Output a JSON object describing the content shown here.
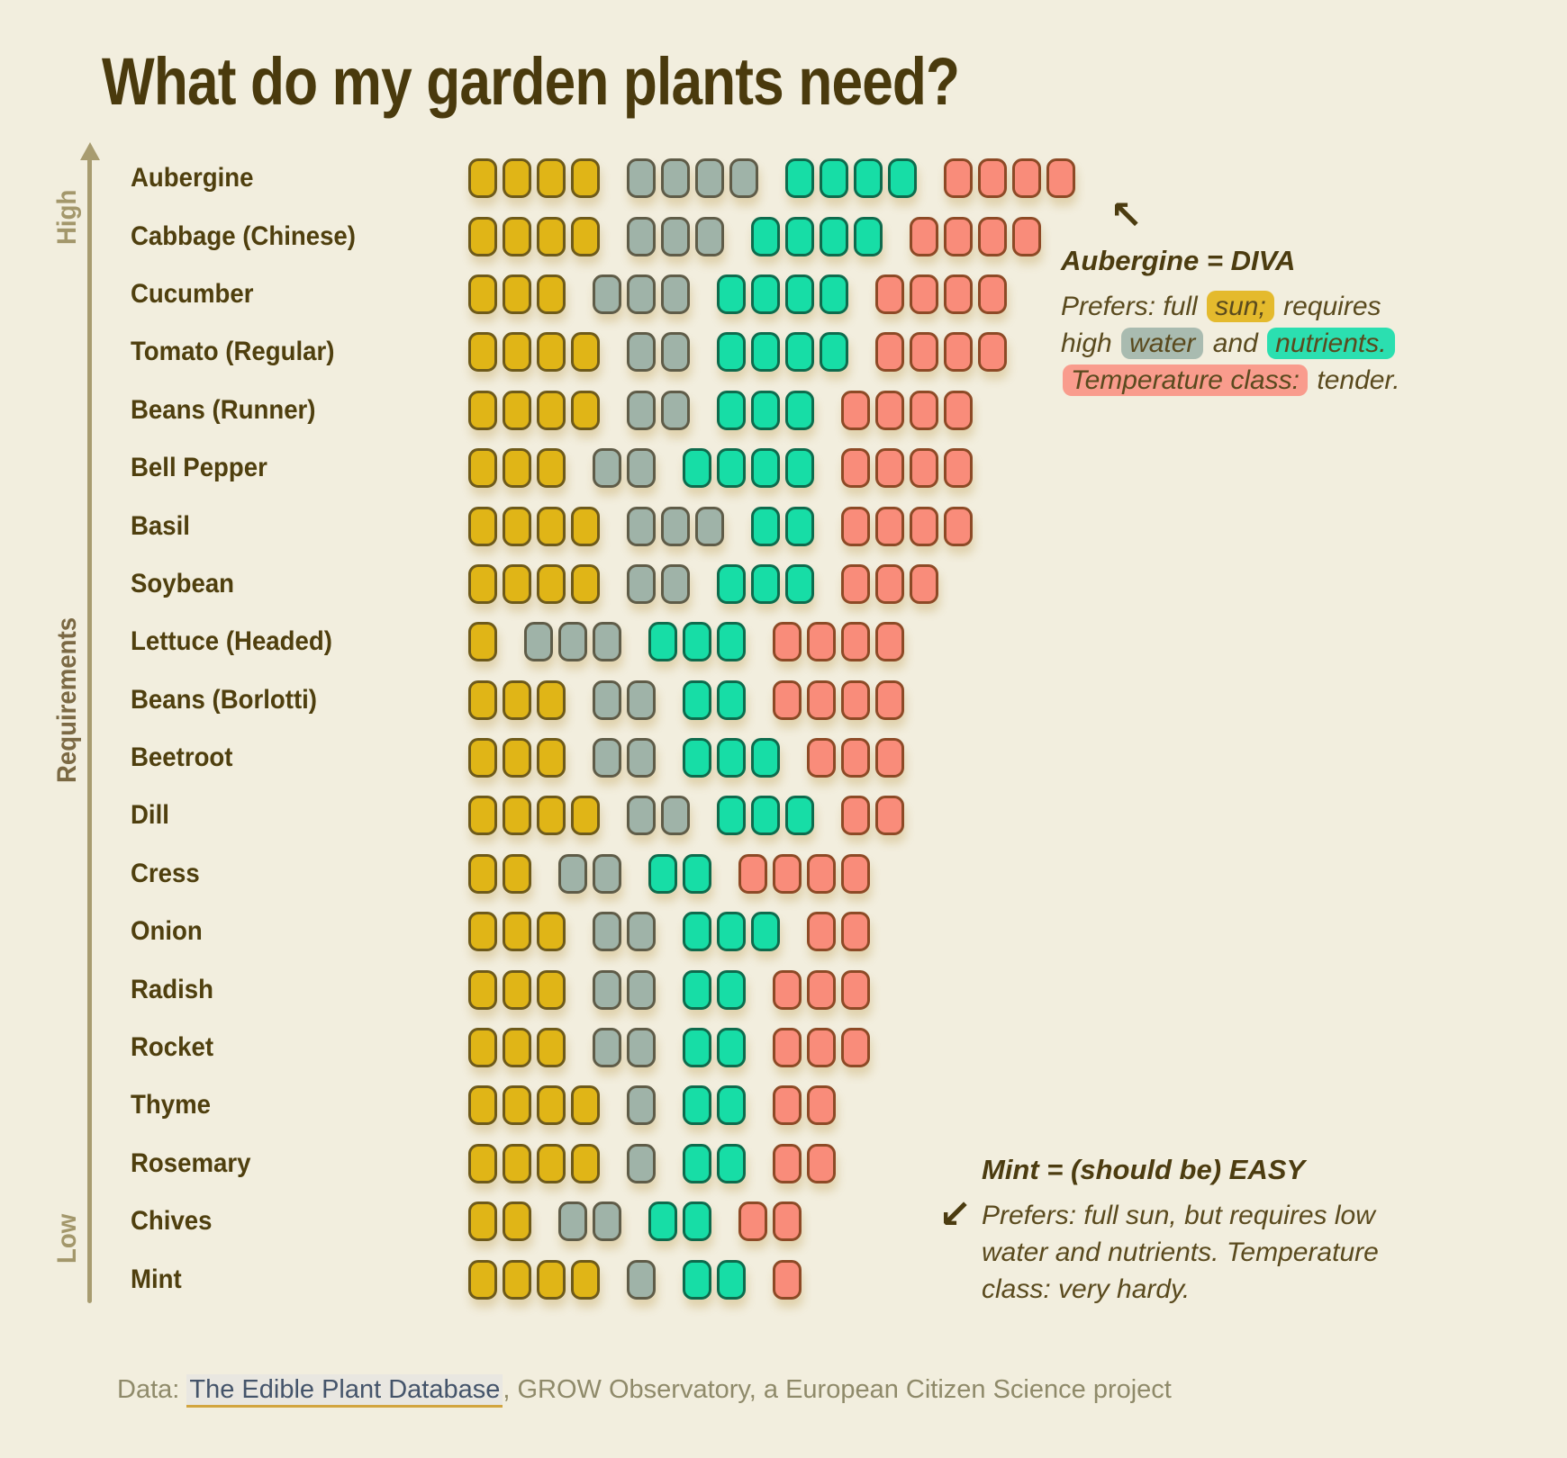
{
  "title": "What do my garden plants need?",
  "axis": {
    "top_label": "High",
    "mid_label": "Requirements",
    "bottom_label": "Low"
  },
  "chart_data": {
    "type": "heatmap",
    "subtype": "icon-array-pictograph",
    "title": "What do my garden plants need?",
    "ylabel": "Requirements",
    "axis_range_labels": [
      "Low",
      "High"
    ],
    "categories": [
      "sun",
      "water",
      "nutrients",
      "temperature"
    ],
    "legend_position": "none",
    "colors": {
      "sun": {
        "fill": "#e0b517",
        "border": "#6e5a1a"
      },
      "water": {
        "fill": "#9fb3a8",
        "border": "#5f5c48"
      },
      "nutrients": {
        "fill": "#17dda6",
        "border": "#0e6b4d"
      },
      "temperature": {
        "fill": "#f98c7a",
        "border": "#8d4a26"
      },
      "background": "#f2eede",
      "text_brown": "#4c3c10",
      "axis_tan": "#a89c70"
    },
    "rows": [
      {
        "plant": "Aubergine",
        "sun": 4,
        "water": 4,
        "nutrients": 4,
        "temperature": 4
      },
      {
        "plant": "Cabbage (Chinese)",
        "sun": 4,
        "water": 3,
        "nutrients": 4,
        "temperature": 4
      },
      {
        "plant": "Cucumber",
        "sun": 3,
        "water": 3,
        "nutrients": 4,
        "temperature": 4
      },
      {
        "plant": "Tomato (Regular)",
        "sun": 4,
        "water": 2,
        "nutrients": 4,
        "temperature": 4
      },
      {
        "plant": "Beans (Runner)",
        "sun": 4,
        "water": 2,
        "nutrients": 3,
        "temperature": 4
      },
      {
        "plant": "Bell Pepper",
        "sun": 3,
        "water": 2,
        "nutrients": 4,
        "temperature": 4
      },
      {
        "plant": "Basil",
        "sun": 4,
        "water": 3,
        "nutrients": 2,
        "temperature": 4
      },
      {
        "plant": "Soybean",
        "sun": 4,
        "water": 2,
        "nutrients": 3,
        "temperature": 3
      },
      {
        "plant": "Lettuce (Headed)",
        "sun": 1,
        "water": 3,
        "nutrients": 3,
        "temperature": 4
      },
      {
        "plant": "Beans (Borlotti)",
        "sun": 3,
        "water": 2,
        "nutrients": 2,
        "temperature": 4
      },
      {
        "plant": "Beetroot",
        "sun": 3,
        "water": 2,
        "nutrients": 3,
        "temperature": 3
      },
      {
        "plant": "Dill",
        "sun": 4,
        "water": 2,
        "nutrients": 3,
        "temperature": 2
      },
      {
        "plant": "Cress",
        "sun": 2,
        "water": 2,
        "nutrients": 2,
        "temperature": 4
      },
      {
        "plant": "Onion",
        "sun": 3,
        "water": 2,
        "nutrients": 3,
        "temperature": 2
      },
      {
        "plant": "Radish",
        "sun": 3,
        "water": 2,
        "nutrients": 2,
        "temperature": 3
      },
      {
        "plant": "Rocket",
        "sun": 3,
        "water": 2,
        "nutrients": 2,
        "temperature": 3
      },
      {
        "plant": "Thyme",
        "sun": 4,
        "water": 1,
        "nutrients": 2,
        "temperature": 2
      },
      {
        "plant": "Rosemary",
        "sun": 4,
        "water": 1,
        "nutrients": 2,
        "temperature": 2
      },
      {
        "plant": "Chives",
        "sun": 2,
        "water": 2,
        "nutrients": 2,
        "temperature": 2
      },
      {
        "plant": "Mint",
        "sun": 4,
        "water": 1,
        "nutrients": 2,
        "temperature": 1
      }
    ]
  },
  "annotations": {
    "diva": {
      "arrow": "↖",
      "title": "Aubergine = DIVA",
      "line1_pre": "Prefers: full",
      "line1_hl": "sun;",
      "line1_post": "requires",
      "line2_pre": "high",
      "line2_hl1": "water",
      "line2_mid": "and",
      "line2_hl2": "nutrients.",
      "line3_hl": "Temperature class:",
      "line3_post": "tender.",
      "hl_colors": {
        "sun": "#e4ba2d",
        "water": "#a9bbb0",
        "nutrients": "#2bdfb0",
        "temperature": "#f99c8d"
      }
    },
    "easy": {
      "arrow": "↙",
      "title": "Mint = (should be) EASY",
      "body": "Prefers: full sun, but requires low water and nutrients. Temperature class: very hardy."
    }
  },
  "footer": {
    "prefix": "Data: ",
    "link_text": "The Edible Plant Database",
    "suffix": ", GROW Observatory, a European Citizen Science project"
  }
}
